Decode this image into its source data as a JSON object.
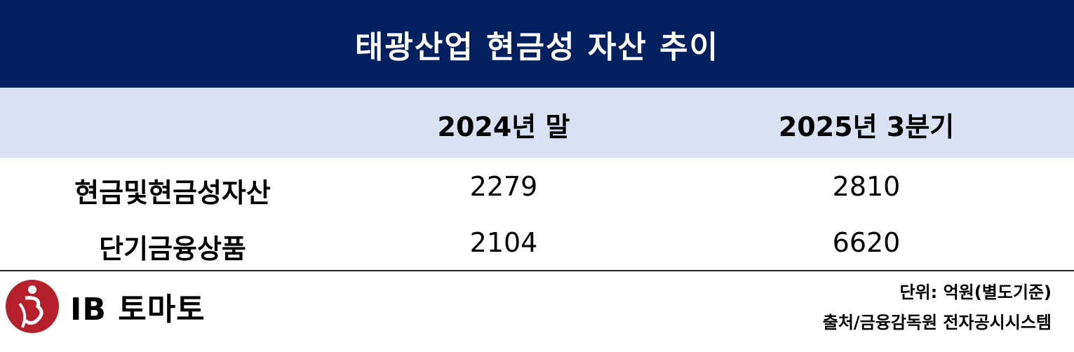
{
  "title": "태광산업 현금성 자산 추이",
  "table": {
    "headers": [
      "",
      "2024년 말",
      "2025년 3분기"
    ],
    "rows": [
      {
        "label": "현금및현금성자산",
        "values": [
          "2279",
          "2810"
        ]
      },
      {
        "label": "단기금융상품",
        "values": [
          "2104",
          "6620"
        ]
      }
    ]
  },
  "footer": {
    "unit": "단위: 억원(별도기준)",
    "source": "출처/금융감독원 전자공시시스템"
  },
  "logo": {
    "text": "IB 토마토",
    "icon": "ib-tomato-logo-icon",
    "color": "#b5202a"
  },
  "colors": {
    "title_bg": "#03215f",
    "header_bg": "#dae1f3"
  }
}
